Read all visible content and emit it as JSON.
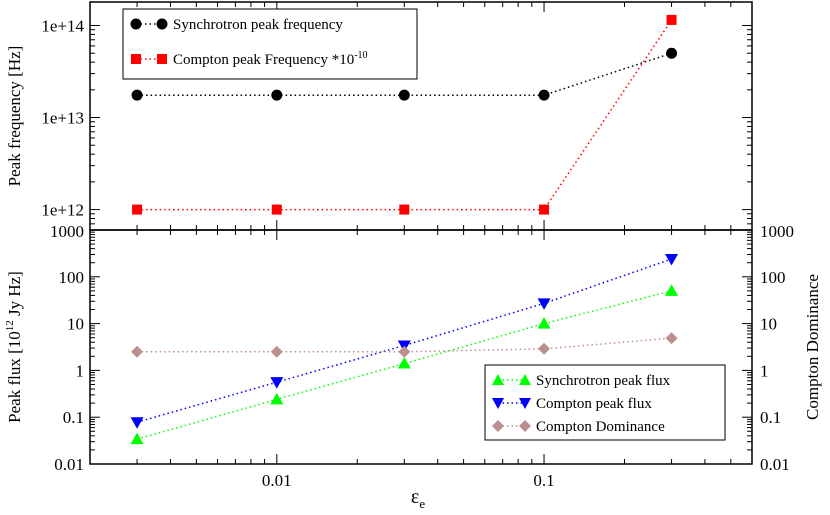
{
  "chart_data": [
    {
      "type": "line",
      "scale": "log",
      "ylabel": "Peak frequency [Hz]",
      "ylim": [
        600000000000,
        180000000000000
      ],
      "yticks": [
        1000000000000,
        10000000000000,
        100000000000000
      ],
      "ytick_labels": [
        "1e+12",
        "1e+13",
        "1e+14"
      ],
      "legend_position": "top-left",
      "series": [
        {
          "name": "Synchrotron peak frequency",
          "color": "#000000",
          "marker": "circle",
          "x": [
            0.003,
            0.01,
            0.03,
            0.1,
            0.3
          ],
          "values": [
            17500000000000,
            17500000000000,
            17500000000000,
            17500000000000,
            50000000000000
          ]
        },
        {
          "name": "Compton peak Frequency *10",
          "superscript": "-10",
          "color": "#ff0000",
          "marker": "square",
          "x": [
            0.003,
            0.01,
            0.03,
            0.1,
            0.3
          ],
          "values": [
            1000000000000,
            1000000000000,
            1000000000000,
            1000000000000,
            115000000000000
          ]
        }
      ]
    },
    {
      "type": "line",
      "scale": "log",
      "xlabel": "ε",
      "xlabel_sub": "e",
      "xlim": [
        0.002,
        0.6
      ],
      "xticks": [
        0.01,
        0.1
      ],
      "xtick_labels": [
        "0.01",
        "0.1"
      ],
      "ylabel": "Peak flux [10",
      "ylabel_sup": "12",
      "ylabel_end": " Jy Hz]",
      "ylabel_right": "Compton Dominance",
      "ylim": [
        0.01,
        1000
      ],
      "yticks": [
        0.01,
        0.1,
        1,
        10,
        100,
        1000
      ],
      "ytick_labels": [
        "0.01",
        "0.1",
        "1",
        "10",
        "100",
        "1000"
      ],
      "legend_position": "bottom-right",
      "series": [
        {
          "name": "Synchrotron peak flux",
          "color": "#00ff00",
          "marker": "triangle-up",
          "x": [
            0.003,
            0.01,
            0.03,
            0.1,
            0.3
          ],
          "values": [
            0.034,
            0.24,
            1.4,
            10,
            50
          ]
        },
        {
          "name": "Compton peak flux",
          "color": "#0000ff",
          "marker": "triangle-down",
          "x": [
            0.003,
            0.01,
            0.03,
            0.1,
            0.3
          ],
          "values": [
            0.078,
            0.56,
            3.4,
            27,
            240
          ]
        },
        {
          "name": "Compton Dominance",
          "color": "#bc8f8f",
          "marker": "diamond",
          "x": [
            0.003,
            0.01,
            0.03,
            0.1,
            0.3
          ],
          "values": [
            2.5,
            2.5,
            2.5,
            2.9,
            4.9
          ]
        }
      ]
    }
  ]
}
